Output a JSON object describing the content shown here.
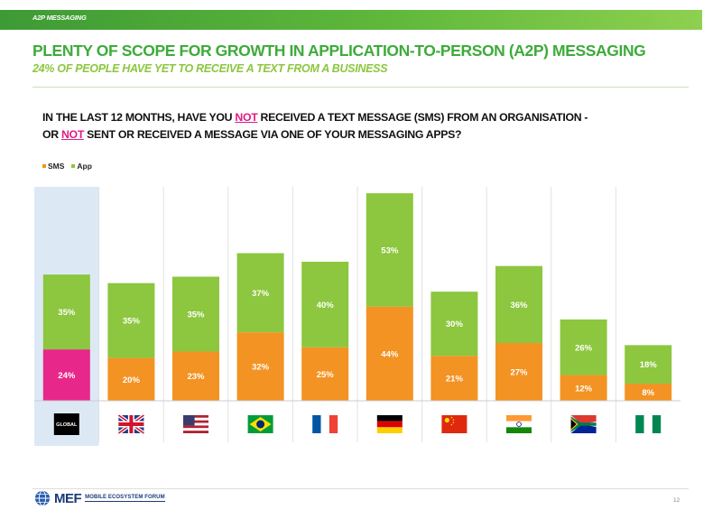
{
  "header": {
    "section_label": "A2P MESSAGING",
    "title": "PLENTY OF SCOPE FOR GROWTH IN APPLICATION-TO-PERSON (A2P) MESSAGING",
    "subtitle": "24% OF PEOPLE HAVE YET TO RECEIVE A TEXT FROM A BUSINESS"
  },
  "question": {
    "part1": "IN THE LAST 12 MONTHS, HAVE YOU ",
    "em1": "NOT",
    "part2": " RECEIVED A TEXT MESSAGE (SMS) FROM AN ORGANISATION -",
    "part3": "OR ",
    "em2": "NOT",
    "part4": " SENT OR RECEIVED A MESSAGE VIA ONE OF YOUR MESSAGING APPS?"
  },
  "colors": {
    "sms": "#f39323",
    "app": "#8dc63f",
    "global_sms": "#e8278b",
    "global_bg": "#dce9f5",
    "title_green": "#3dab3a"
  },
  "chart_data": {
    "type": "bar",
    "stacked": true,
    "categories": [
      "Global",
      "UK",
      "USA",
      "Brazil",
      "France",
      "Germany",
      "China",
      "India",
      "South Africa",
      "Nigeria"
    ],
    "series": [
      {
        "name": "SMS",
        "values": [
          24,
          20,
          23,
          32,
          25,
          44,
          21,
          27,
          12,
          8
        ]
      },
      {
        "name": "App",
        "values": [
          35,
          35,
          35,
          37,
          40,
          53,
          30,
          36,
          26,
          18
        ]
      }
    ],
    "legend_position": "top-left",
    "grid": false,
    "global_label": "GLOBAL"
  },
  "footer": {
    "logo_text": "MEF",
    "logo_sub": "MOBILE ECOSYSTEM FORUM",
    "page_number": "12"
  }
}
